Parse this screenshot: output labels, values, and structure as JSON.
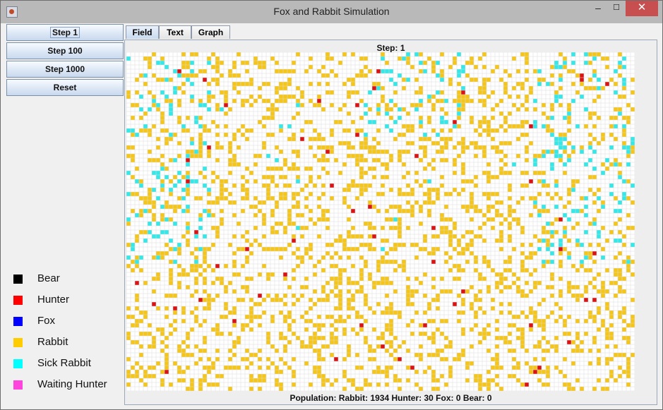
{
  "window": {
    "title": "Fox and Rabbit Simulation",
    "controls": {
      "minimize": "‒",
      "maximize": "☐",
      "close": "✕"
    }
  },
  "sidebar": {
    "buttons": [
      {
        "label": "Step 1"
      },
      {
        "label": "Step 100"
      },
      {
        "label": "Step 1000"
      },
      {
        "label": "Reset"
      }
    ]
  },
  "legend": [
    {
      "label": "Bear",
      "color": "#000000"
    },
    {
      "label": "Hunter",
      "color": "#ff0000"
    },
    {
      "label": "Fox",
      "color": "#0000ff"
    },
    {
      "label": "Rabbit",
      "color": "#ffcc00"
    },
    {
      "label": "Sick Rabbit",
      "color": "#00ffff"
    },
    {
      "label": "Waiting Hunter",
      "color": "#ff44dd"
    }
  ],
  "tabs": [
    {
      "label": "Field",
      "active": true
    },
    {
      "label": "Text",
      "active": false
    },
    {
      "label": "Graph",
      "active": false
    }
  ],
  "field": {
    "step_label": "Step: 1",
    "population_label": "Population: Rabbit: 1934 Hunter: 30 Fox: 0 Bear: 0",
    "population": {
      "rabbit": 1934,
      "hunter": 30,
      "fox": 0,
      "bear": 0
    },
    "grid_colors": {
      "empty": "#ffffff",
      "grid_line": "#dcdcdc",
      "rabbit": "#f5c518",
      "sick_rabbit": "#33e8e8",
      "hunter": "#dd1111"
    }
  }
}
